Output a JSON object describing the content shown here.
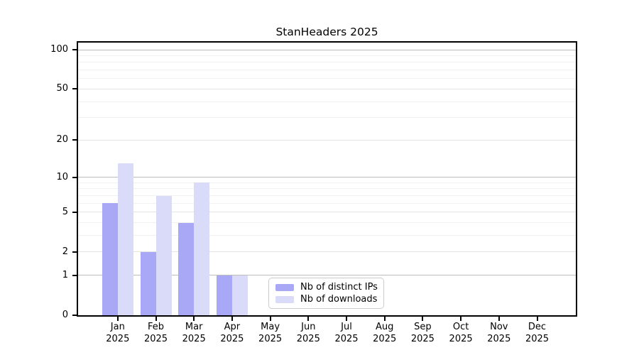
{
  "chart_data": {
    "type": "bar",
    "title": "StanHeaders 2025",
    "categories": [
      "Jan",
      "Feb",
      "Mar",
      "Apr",
      "May",
      "Jun",
      "Jul",
      "Aug",
      "Sep",
      "Oct",
      "Nov",
      "Dec"
    ],
    "year_label": "2025",
    "series": [
      {
        "name": "Nb of distinct IPs",
        "color": "#a8a8f6",
        "values": [
          6,
          2,
          4,
          1,
          0,
          0,
          0,
          0,
          0,
          0,
          0,
          0
        ]
      },
      {
        "name": "Nb of downloads",
        "color": "#dadaf9",
        "values": [
          13,
          7,
          9,
          1,
          0,
          0,
          0,
          0,
          0,
          0,
          0,
          0
        ]
      }
    ],
    "y_axis": {
      "scale": "log1p",
      "tick_values": [
        0,
        1,
        2,
        5,
        10,
        20,
        50,
        100
      ],
      "tick_labels": [
        "0",
        "1",
        "2",
        "5",
        "10",
        "20",
        "50",
        "100"
      ],
      "ylim": [
        0,
        113
      ]
    },
    "gridlines": {
      "decade": [
        1,
        10,
        100
      ],
      "mid": [
        2,
        5,
        20,
        50
      ],
      "minor": [
        3,
        4,
        6,
        7,
        8,
        9,
        30,
        40,
        60,
        70,
        80,
        90
      ]
    },
    "legend": {
      "position": "lower center",
      "entries": [
        "Nb of distinct IPs",
        "Nb of downloads"
      ]
    },
    "colors": {
      "spine": "#000000",
      "background": "#ffffff",
      "legend_border": "#cccccc"
    }
  }
}
